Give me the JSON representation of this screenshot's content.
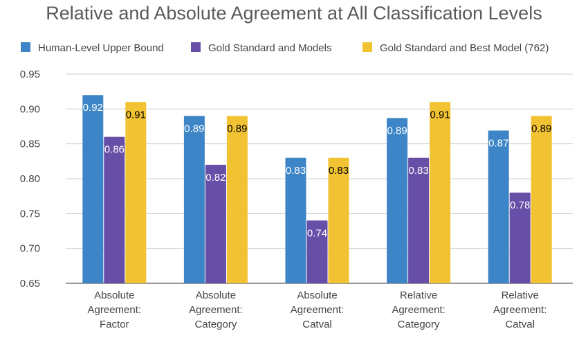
{
  "chart_data": {
    "type": "bar",
    "title": "Relative and Absolute Agreement at All Classification Levels",
    "categories": [
      [
        "Absolute",
        "Agreement:",
        "Factor"
      ],
      [
        "Absolute",
        "Agreement:",
        "Category"
      ],
      [
        "Absolute",
        "Agreement:",
        "Catval"
      ],
      [
        "Relative",
        "Agreement:",
        "Category"
      ],
      [
        "Relative",
        "Agreement:",
        "Catval"
      ]
    ],
    "series": [
      {
        "name": "Human-Level Upper Bound",
        "color": "#3D85C6",
        "values": [
          0.92,
          0.89,
          0.83,
          0.887,
          0.869
        ],
        "labels": [
          "0.92",
          "0.89",
          "0.83",
          "0.89",
          "0.87"
        ],
        "label_color": "#ffffff"
      },
      {
        "name": "Gold Standard and Models",
        "color": "#674EA7",
        "values": [
          0.86,
          0.82,
          0.74,
          0.83,
          0.78
        ],
        "labels": [
          "0.86",
          "0.82",
          "0.74",
          "0.83",
          "0.78"
        ],
        "label_color": "#ffffff"
      },
      {
        "name": "Gold Standard and Best Model (762)",
        "color": "#F1C232",
        "values": [
          0.91,
          0.89,
          0.83,
          0.91,
          0.89
        ],
        "labels": [
          "0.91",
          "0.89",
          "0.83",
          "0.91",
          "0.89"
        ],
        "label_color": "#000000"
      }
    ],
    "ylim": [
      0.65,
      0.95
    ],
    "yticks": [
      "0.65",
      "0.70",
      "0.75",
      "0.80",
      "0.85",
      "0.90",
      "0.95"
    ],
    "grid": true,
    "legend_position": "top",
    "xlabel": "",
    "ylabel": ""
  }
}
